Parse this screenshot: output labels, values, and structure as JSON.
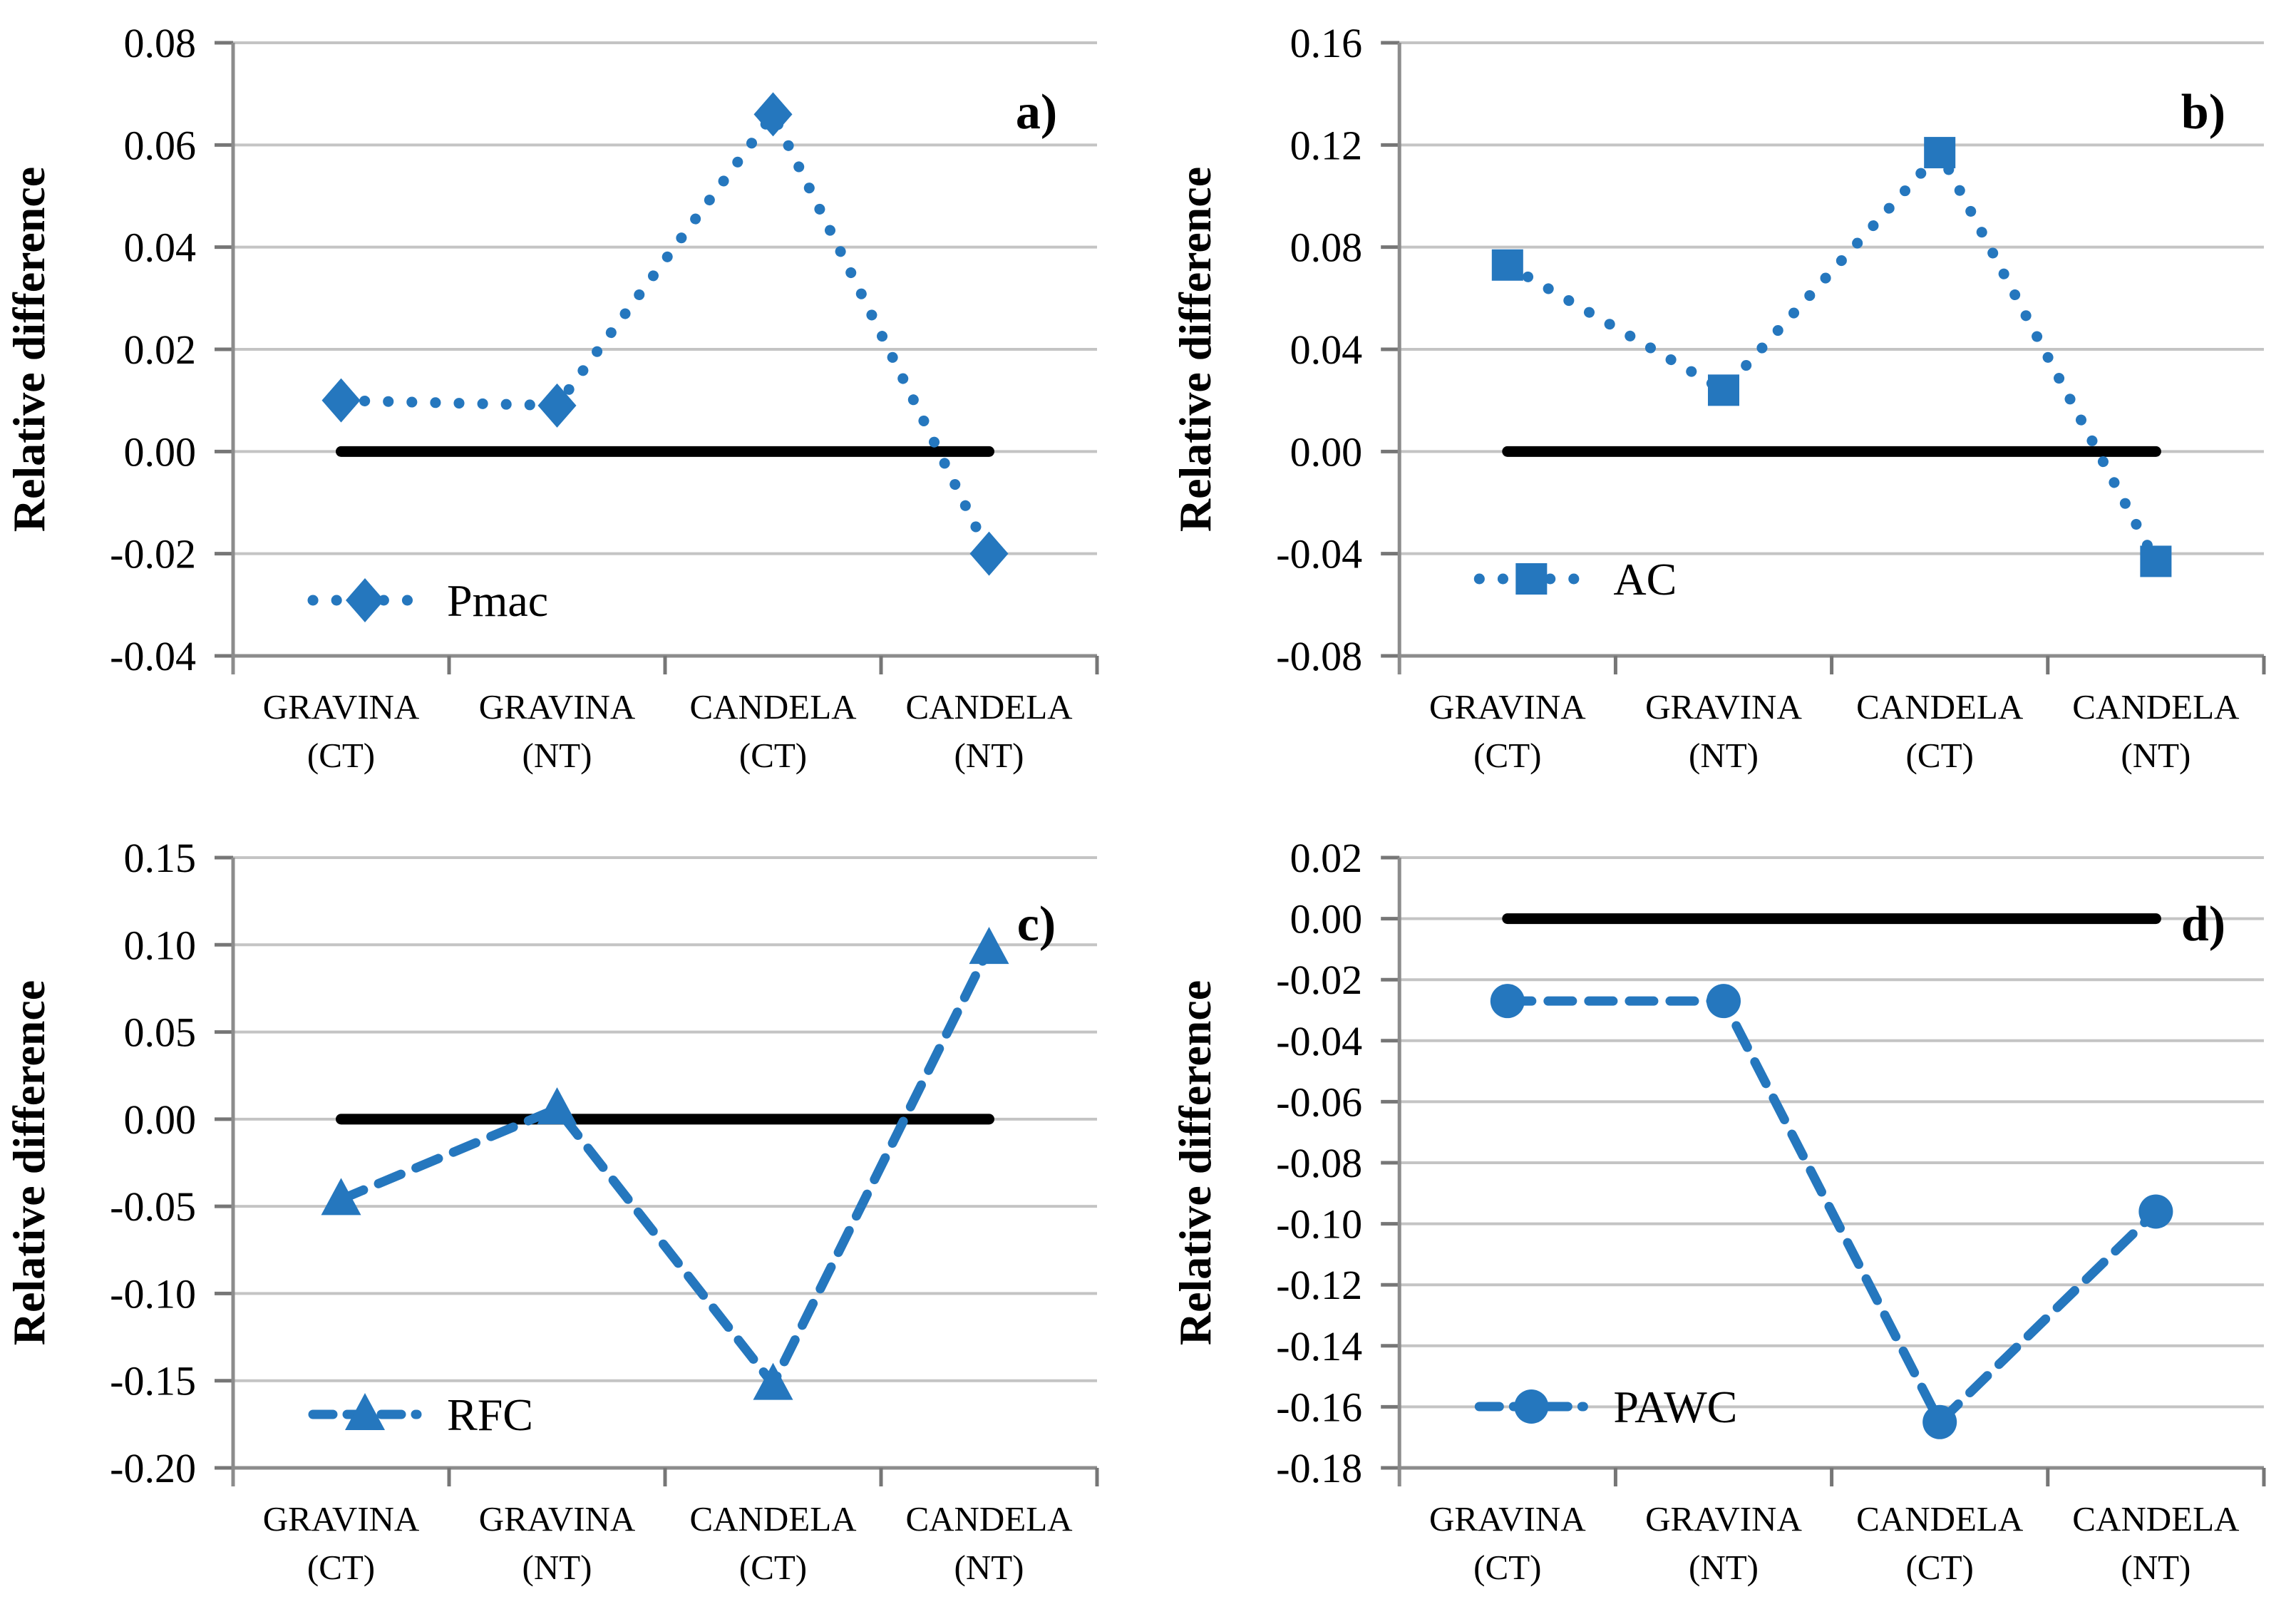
{
  "figure": {
    "ylabel": "Relative difference",
    "categories_line1": [
      "GRAVINA",
      "GRAVINA",
      "CANDELA",
      "CANDELA"
    ],
    "categories_line2": [
      "(CT)",
      "(NT)",
      "(CT)",
      "(NT)"
    ]
  },
  "colors": {
    "series_blue": "#2577BE",
    "zero_line": "#000000",
    "gridline": "#C4C4C4",
    "axis": "#8C8C8C",
    "tick": "#767676",
    "text": "#000000"
  },
  "chart_data": [
    {
      "type": "line",
      "panel_label": "a)",
      "series_name": "Pmac",
      "marker": "diamond",
      "line_style": "dotted",
      "x_categories": [
        "GRAVINA (CT)",
        "GRAVINA (NT)",
        "CANDELA (CT)",
        "CANDELA (NT)"
      ],
      "values": [
        0.01,
        0.009,
        0.066,
        -0.02
      ],
      "ylabel": "Relative difference",
      "ylim": [
        -0.04,
        0.08
      ],
      "ytick_step": 0.02,
      "ytick_labels": [
        "0.08",
        "0.06",
        "0.04",
        "0.02",
        "0.00",
        "-0.02",
        "-0.04"
      ],
      "zero_reference_line": 0.0,
      "grid": true,
      "legend_position": "lower-left"
    },
    {
      "type": "line",
      "panel_label": "b)",
      "series_name": "AC",
      "marker": "square",
      "line_style": "dotted",
      "x_categories": [
        "GRAVINA (CT)",
        "GRAVINA (NT)",
        "CANDELA (CT)",
        "CANDELA (NT)"
      ],
      "values": [
        0.073,
        0.024,
        0.117,
        -0.043
      ],
      "ylabel": "Relative difference",
      "ylim": [
        -0.08,
        0.16
      ],
      "ytick_step": 0.04,
      "ytick_labels": [
        "0.16",
        "0.12",
        "0.08",
        "0.04",
        "0.00",
        "-0.04",
        "-0.08"
      ],
      "zero_reference_line": 0.0,
      "grid": true,
      "legend_position": "lower-left"
    },
    {
      "type": "line",
      "panel_label": "c)",
      "series_name": "RFC",
      "marker": "triangle",
      "line_style": "dashed",
      "x_categories": [
        "GRAVINA (CT)",
        "GRAVINA (NT)",
        "CANDELA (CT)",
        "CANDELA (NT)"
      ],
      "values": [
        -0.046,
        0.006,
        -0.152,
        0.098
      ],
      "ylabel": "Relative difference",
      "ylim": [
        -0.2,
        0.15
      ],
      "ytick_step": 0.05,
      "ytick_labels": [
        "0.15",
        "0.10",
        "0.05",
        "0.00",
        "-0.05",
        "-0.10",
        "-0.15",
        "-0.20"
      ],
      "zero_reference_line": 0.0,
      "grid": true,
      "legend_position": "lower-left"
    },
    {
      "type": "line",
      "panel_label": "d)",
      "series_name": "PAWC",
      "marker": "circle",
      "line_style": "dashed",
      "x_categories": [
        "GRAVINA (CT)",
        "GRAVINA (NT)",
        "CANDELA (CT)",
        "CANDELA (NT)"
      ],
      "values": [
        -0.027,
        -0.027,
        -0.165,
        -0.096
      ],
      "ylabel": "Relative difference",
      "ylim": [
        -0.18,
        0.02
      ],
      "ytick_step": 0.02,
      "ytick_labels": [
        "0.02",
        "0.00",
        "-0.02",
        "-0.04",
        "-0.06",
        "-0.08",
        "-0.10",
        "-0.12",
        "-0.14",
        "-0.16",
        "-0.18"
      ],
      "zero_reference_line": 0.0,
      "grid": true,
      "legend_position": "lower-left"
    }
  ]
}
